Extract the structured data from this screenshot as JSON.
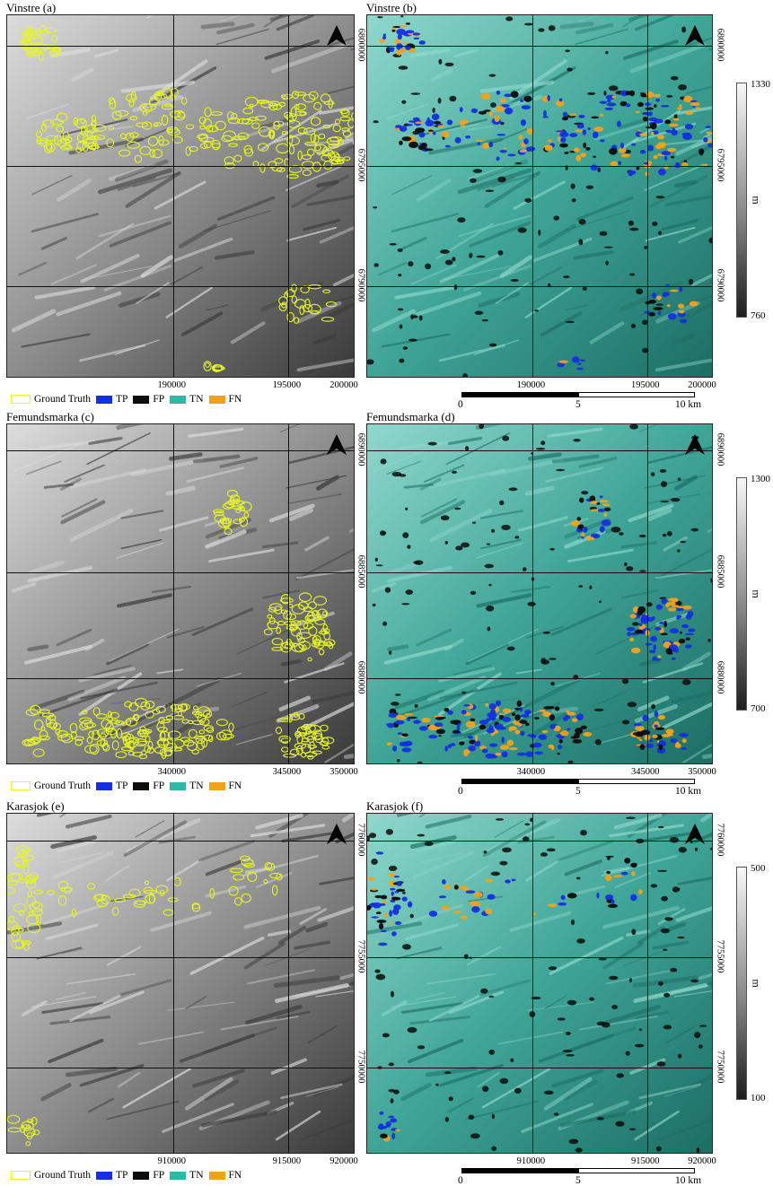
{
  "colors": {
    "tp": "#1230e0",
    "fp": "#0c0c0c",
    "tn": "#2fb8a6",
    "fn": "#f2a21a",
    "ground_truth": "#e6f525"
  },
  "legend": {
    "ground_truth": "Ground Truth",
    "tp": "TP",
    "fp": "FP",
    "tn": "TN",
    "fn": "FN"
  },
  "scalebar": {
    "start": "0",
    "mid": "5",
    "end": "10 km"
  },
  "colorbar_unit": "m",
  "north_icon": "north-arrow-icon",
  "rows": [
    {
      "left_title": "Vinstre (a)",
      "right_title": "Vinstre (b)",
      "x_ticks": [
        "190000",
        "195000",
        "200000"
      ],
      "y_ticks": [
        "6800000",
        "6795000",
        "6790000"
      ],
      "elevation_max": "1330",
      "elevation_min": "760"
    },
    {
      "left_title": "Femundsmarka (c)",
      "right_title": "Femundsmarka (d)",
      "x_ticks": [
        "340000",
        "345000",
        "350000"
      ],
      "y_ticks": [
        "6890000",
        "6885000",
        "6880000"
      ],
      "elevation_max": "1300",
      "elevation_min": "700"
    },
    {
      "left_title": "Karasjok (e)",
      "right_title": "Karasjok (f)",
      "x_ticks": [
        "910000",
        "915000",
        "920000"
      ],
      "y_ticks": [
        "7760000",
        "7755000",
        "7750000"
      ],
      "elevation_max": "500",
      "elevation_min": "100"
    }
  ]
}
